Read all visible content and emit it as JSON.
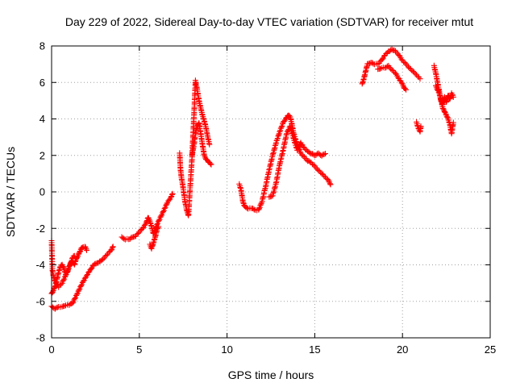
{
  "chart_data": {
    "type": "scatter",
    "title": "Day 229 of 2022, Sidereal Day-to-day VTEC variation (SDTVAR) for receiver mtut",
    "xlabel": "GPS time / hours",
    "ylabel": "SDTVAR / TECUs",
    "xlim": [
      0,
      25
    ],
    "ylim": [
      -8,
      8
    ],
    "xticks": [
      0,
      5,
      10,
      15,
      20,
      25
    ],
    "yticks": [
      -8,
      -6,
      -4,
      -2,
      0,
      2,
      4,
      6,
      8
    ],
    "grid": true,
    "marker": "+",
    "color": "#ff0000",
    "series": [
      {
        "name": "trace-a",
        "x": [
          0.0,
          0.05,
          0.1,
          0.2,
          0.4,
          0.6,
          0.8,
          1.0,
          1.1,
          1.2,
          1.3,
          1.4,
          1.5,
          1.6,
          1.7,
          1.8,
          1.9,
          2.0
        ],
        "y": [
          -2.7,
          -4.3,
          -4.6,
          -4.9,
          -5.2,
          -5.0,
          -4.6,
          -4.1,
          -3.9,
          -3.8,
          -4.0,
          -3.7,
          -3.5,
          -3.3,
          -3.1,
          -3.0,
          -3.0,
          -3.2
        ]
      },
      {
        "name": "trace-b",
        "x": [
          0.0,
          0.1,
          0.2,
          0.3,
          0.4,
          0.5,
          0.6,
          0.7,
          0.8,
          0.9,
          1.0,
          1.1,
          1.2,
          1.3
        ],
        "y": [
          -5.6,
          -5.4,
          -5.2,
          -4.8,
          -4.4,
          -4.1,
          -4.0,
          -4.2,
          -4.5,
          -4.4,
          -4.1,
          -3.9,
          -3.6,
          -3.5
        ]
      },
      {
        "name": "trace-c",
        "x": [
          0.0,
          0.2,
          0.4,
          0.6,
          0.8,
          1.0,
          1.2,
          1.4,
          1.6,
          1.8,
          2.0,
          2.2,
          2.4,
          2.6,
          2.8,
          3.0,
          3.2,
          3.4,
          3.5
        ],
        "y": [
          -6.3,
          -6.4,
          -6.3,
          -6.3,
          -6.2,
          -6.2,
          -6.1,
          -5.7,
          -5.3,
          -4.9,
          -4.6,
          -4.3,
          -4.0,
          -3.9,
          -3.8,
          -3.6,
          -3.4,
          -3.2,
          -3.0
        ]
      },
      {
        "name": "trace-d",
        "x": [
          4.0,
          4.2,
          4.4,
          4.6,
          4.8,
          5.0,
          5.2,
          5.4,
          5.5,
          5.6,
          5.7,
          5.8,
          5.9,
          6.0,
          6.2,
          6.4,
          6.6,
          6.8,
          6.9
        ],
        "y": [
          -2.5,
          -2.6,
          -2.6,
          -2.5,
          -2.4,
          -2.2,
          -2.0,
          -1.7,
          -1.4,
          -1.6,
          -1.9,
          -2.3,
          -2.1,
          -1.8,
          -1.4,
          -1.0,
          -0.6,
          -0.3,
          -0.1
        ]
      },
      {
        "name": "trace-e",
        "x": [
          5.6,
          5.7,
          5.8,
          5.9,
          6.0,
          6.1
        ],
        "y": [
          -2.9,
          -3.1,
          -2.8,
          -2.5,
          -2.1,
          -1.9
        ]
      },
      {
        "name": "trace-f",
        "x": [
          7.3,
          7.35,
          7.4,
          7.5,
          7.6,
          7.7,
          7.8,
          7.9,
          8.0,
          8.1,
          8.2,
          8.3,
          8.4,
          8.5,
          8.6,
          8.7,
          8.8,
          8.9,
          9.0
        ],
        "y": [
          2.1,
          1.2,
          0.8,
          0.2,
          -0.5,
          -1.0,
          -1.3,
          0.3,
          1.8,
          3.8,
          6.1,
          5.6,
          5.0,
          4.6,
          4.2,
          3.9,
          3.5,
          3.0,
          2.6
        ]
      },
      {
        "name": "trace-g",
        "x": [
          8.0,
          8.1,
          8.2,
          8.3,
          8.4,
          8.5,
          8.6,
          8.7,
          8.8,
          8.9,
          9.0,
          9.1
        ],
        "y": [
          2.0,
          2.5,
          3.2,
          3.6,
          3.8,
          3.2,
          2.6,
          2.0,
          1.8,
          1.7,
          1.6,
          1.5
        ]
      },
      {
        "name": "trace-h",
        "x": [
          10.7,
          10.8,
          10.9,
          11.0,
          11.2,
          11.4,
          11.6,
          11.8,
          12.0,
          12.2,
          12.4,
          12.6,
          12.8,
          13.0,
          13.2,
          13.4,
          13.5,
          13.6,
          13.7,
          13.8,
          14.0,
          14.2,
          14.4,
          14.6,
          14.8,
          15.0,
          15.2,
          15.4,
          15.6,
          15.8,
          15.9
        ],
        "y": [
          0.4,
          0.1,
          -0.5,
          -0.8,
          -0.9,
          -0.9,
          -1.0,
          -1.0,
          -0.5,
          0.3,
          1.2,
          2.0,
          2.7,
          3.3,
          3.8,
          4.1,
          4.2,
          4.1,
          3.7,
          3.2,
          2.6,
          2.1,
          1.9,
          1.7,
          1.6,
          1.4,
          1.2,
          1.0,
          0.8,
          0.6,
          0.4
        ]
      },
      {
        "name": "trace-i",
        "x": [
          12.4,
          12.6,
          12.8,
          13.0,
          13.2,
          13.4,
          13.6,
          13.8,
          14.0,
          14.2,
          14.4,
          14.6,
          14.8,
          15.0,
          15.2,
          15.4,
          15.6
        ],
        "y": [
          -0.3,
          -0.2,
          0.5,
          1.5,
          2.3,
          3.2,
          3.6,
          2.9,
          2.3,
          2.7,
          2.4,
          2.2,
          2.1,
          2.0,
          2.1,
          2.0,
          2.1
        ]
      },
      {
        "name": "trace-j",
        "x": [
          17.7,
          17.8,
          17.9,
          18.0,
          18.2,
          18.4,
          18.6,
          18.8,
          19.0,
          19.2,
          19.4,
          19.6,
          19.8,
          20.0,
          20.2,
          20.4,
          20.6,
          20.8,
          21.0
        ],
        "y": [
          5.9,
          6.2,
          6.6,
          7.0,
          7.1,
          7.0,
          7.0,
          7.2,
          7.5,
          7.7,
          7.8,
          7.7,
          7.5,
          7.2,
          7.0,
          6.8,
          6.6,
          6.4,
          6.2
        ]
      },
      {
        "name": "trace-k",
        "x": [
          18.6,
          18.8,
          19.0,
          19.2,
          19.4,
          19.6,
          19.8,
          20.0,
          20.1,
          20.2
        ],
        "y": [
          6.7,
          6.8,
          6.8,
          6.9,
          6.7,
          6.5,
          6.2,
          5.9,
          5.7,
          5.6
        ]
      },
      {
        "name": "trace-l",
        "x": [
          20.8,
          20.9,
          21.0,
          21.05
        ],
        "y": [
          3.8,
          3.5,
          3.3,
          3.6
        ]
      },
      {
        "name": "trace-m",
        "x": [
          21.8,
          21.9,
          22.0,
          22.1,
          22.2,
          22.3,
          22.4,
          22.5,
          22.6,
          22.7,
          22.8,
          22.9
        ],
        "y": [
          6.9,
          6.5,
          6.0,
          5.5,
          5.0,
          4.8,
          5.2,
          4.9,
          5.3,
          5.1,
          5.4,
          5.2
        ]
      },
      {
        "name": "trace-n",
        "x": [
          21.9,
          22.0,
          22.1,
          22.2,
          22.3,
          22.4,
          22.5,
          22.6,
          22.7,
          22.8,
          22.9
        ],
        "y": [
          5.8,
          5.6,
          5.4,
          5.0,
          4.6,
          4.4,
          4.2,
          4.0,
          3.7,
          3.2,
          3.8
        ]
      }
    ]
  }
}
